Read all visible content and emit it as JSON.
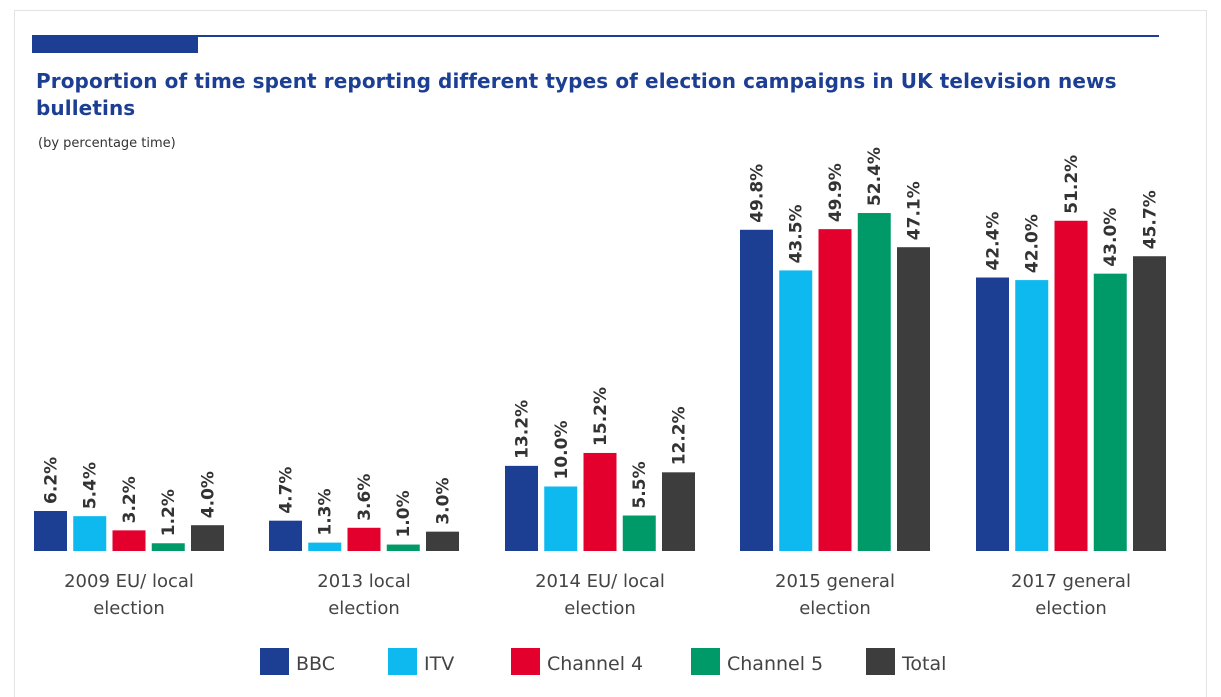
{
  "header": {
    "accent_color": "#1c3f94"
  },
  "chart_data": {
    "type": "bar",
    "title": "Proportion of time spent reporting different types of election campaigns in UK television news bulletins",
    "subtitle": "(by percentage time)",
    "categories": [
      [
        "2009 EU/ local",
        "election"
      ],
      [
        "2013 local",
        "election"
      ],
      [
        "2014 EU/ local",
        "election"
      ],
      [
        "2015 general",
        "election"
      ],
      [
        "2017 general",
        "election"
      ]
    ],
    "series": [
      {
        "name": "BBC",
        "color": "#1c3f94",
        "values": [
          6.2,
          4.7,
          13.2,
          49.8,
          42.4
        ],
        "labels": [
          "6.2%",
          "4.7%",
          "13.2%",
          "49.8%",
          "42.4%"
        ]
      },
      {
        "name": "ITV",
        "color": "#0db9ee",
        "values": [
          5.4,
          1.3,
          10.0,
          43.5,
          42.0
        ],
        "labels": [
          "5.4%",
          "1.3%",
          "10.0%",
          "43.5%",
          "42.0%"
        ]
      },
      {
        "name": "Channel 4",
        "color": "#e3002d",
        "values": [
          3.2,
          3.6,
          15.2,
          49.9,
          51.2
        ],
        "labels": [
          "3.2%",
          "3.6%",
          "15.2%",
          "49.9%",
          "51.2%"
        ]
      },
      {
        "name": "Channel 5",
        "color": "#009a68",
        "values": [
          1.2,
          1.0,
          5.5,
          52.4,
          43.0
        ],
        "labels": [
          "1.2%",
          "1.0%",
          "5.5%",
          "52.4%",
          "43.0%"
        ]
      },
      {
        "name": "Total",
        "color": "#3d3d3d",
        "values": [
          4.0,
          3.0,
          12.2,
          47.1,
          45.7
        ],
        "labels": [
          "4.0%",
          "3.0%",
          "12.2%",
          "47.1%",
          "45.7%"
        ]
      }
    ],
    "ylim": [
      0,
      52.4
    ],
    "grid": false,
    "legend_position": "bottom"
  }
}
